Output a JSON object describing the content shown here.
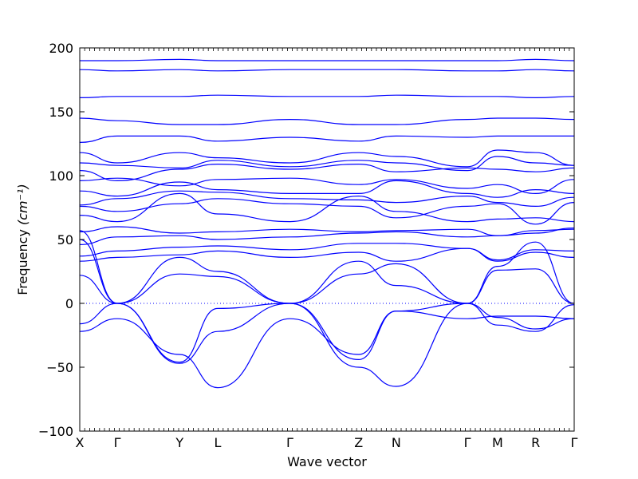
{
  "chart_data": {
    "type": "line",
    "xlabel": "Wave vector",
    "ylabel": "Frequency",
    "ylabel_unit": "(cm⁻¹)",
    "ylim": [
      -100,
      200
    ],
    "yticks": [
      -100,
      -50,
      0,
      50,
      100,
      150,
      200
    ],
    "x_points": [
      {
        "label": "X",
        "x": 0.0
      },
      {
        "label": "Γ",
        "x": 0.076
      },
      {
        "label": "Y",
        "x": 0.202
      },
      {
        "label": "L",
        "x": 0.279
      },
      {
        "label": "Γ",
        "x": 0.425
      },
      {
        "label": "Z",
        "x": 0.564
      },
      {
        "label": "N",
        "x": 0.64
      },
      {
        "label": "Γ",
        "x": 0.784
      },
      {
        "label": "M",
        "x": 0.845
      },
      {
        "label": "R",
        "x": 0.922
      },
      {
        "label": "Γ",
        "x": 1.0
      }
    ],
    "xlim": [
      0,
      1
    ],
    "zero_line": {
      "y": 0,
      "style": "dotted"
    },
    "line_color": "#0000ff",
    "series": [
      {
        "x": [
          0,
          0.076,
          0.202,
          0.279,
          0.425,
          0.564,
          0.64,
          0.784,
          0.845,
          0.922,
          1.0
        ],
        "values": [
          190,
          190,
          191,
          190,
          190,
          190,
          190,
          190,
          190,
          191,
          190
        ]
      },
      {
        "x": [
          0,
          0.076,
          0.202,
          0.279,
          0.425,
          0.564,
          0.64,
          0.784,
          0.845,
          0.922,
          1.0
        ],
        "values": [
          183,
          182,
          183,
          182,
          183,
          183,
          183,
          182,
          182,
          183,
          182
        ]
      },
      {
        "x": [
          0,
          0.076,
          0.202,
          0.279,
          0.425,
          0.564,
          0.64,
          0.784,
          0.845,
          0.922,
          1.0
        ],
        "values": [
          161,
          162,
          162,
          163,
          162,
          162,
          163,
          162,
          162,
          161,
          162
        ]
      },
      {
        "x": [
          0,
          0.076,
          0.202,
          0.279,
          0.425,
          0.564,
          0.64,
          0.784,
          0.845,
          0.922,
          1.0
        ],
        "values": [
          145,
          143,
          140,
          140,
          144,
          140,
          140,
          144,
          145,
          145,
          144
        ]
      },
      {
        "x": [
          0,
          0.076,
          0.202,
          0.279,
          0.425,
          0.564,
          0.64,
          0.784,
          0.845,
          0.922,
          1.0
        ],
        "values": [
          126,
          131,
          131,
          127,
          130,
          127,
          131,
          130,
          131,
          131,
          131
        ]
      },
      {
        "x": [
          0,
          0.076,
          0.202,
          0.279,
          0.425,
          0.564,
          0.64,
          0.784,
          0.845,
          0.922,
          1.0
        ],
        "values": [
          118,
          110,
          118,
          114,
          110,
          118,
          115,
          107,
          120,
          118,
          108
        ]
      },
      {
        "x": [
          0,
          0.076,
          0.202,
          0.279,
          0.425,
          0.564,
          0.64,
          0.784,
          0.845,
          0.922,
          1.0
        ],
        "values": [
          110,
          108,
          106,
          112,
          107,
          112,
          110,
          104,
          115,
          110,
          108
        ]
      },
      {
        "x": [
          0,
          0.076,
          0.202,
          0.279,
          0.425,
          0.564,
          0.64,
          0.784,
          0.845,
          0.922,
          1.0
        ],
        "values": [
          104,
          96,
          105,
          109,
          105,
          109,
          103,
          106,
          105,
          103,
          106
        ]
      },
      {
        "x": [
          0,
          0.076,
          0.202,
          0.279,
          0.425,
          0.564,
          0.64,
          0.784,
          0.845,
          0.922,
          1.0
        ],
        "values": [
          96,
          98,
          92,
          97,
          98,
          93,
          97,
          90,
          93,
          86,
          97
        ]
      },
      {
        "x": [
          0,
          0.076,
          0.202,
          0.279,
          0.425,
          0.564,
          0.64,
          0.784,
          0.845,
          0.922,
          1.0
        ],
        "values": [
          88,
          84,
          95,
          89,
          86,
          86,
          96,
          86,
          83,
          89,
          86
        ]
      },
      {
        "x": [
          0,
          0.076,
          0.202,
          0.279,
          0.425,
          0.564,
          0.64,
          0.784,
          0.845,
          0.922,
          1.0
        ],
        "values": [
          77,
          82,
          88,
          87,
          82,
          81,
          79,
          84,
          79,
          76,
          83
        ]
      },
      {
        "x": [
          0,
          0.076,
          0.202,
          0.279,
          0.425,
          0.564,
          0.64,
          0.784,
          0.845,
          0.922,
          1.0
        ],
        "values": [
          76,
          72,
          78,
          82,
          78,
          76,
          67,
          76,
          78,
          62,
          79
        ]
      },
      {
        "x": [
          0,
          0.076,
          0.202,
          0.279,
          0.425,
          0.564,
          0.64,
          0.784,
          0.845,
          0.922,
          1.0
        ],
        "values": [
          69,
          64,
          86,
          70,
          64,
          84,
          72,
          64,
          66,
          67,
          64
        ]
      },
      {
        "x": [
          0,
          0.076,
          0.202,
          0.279,
          0.425,
          0.564,
          0.64,
          0.784,
          0.845,
          0.922,
          1.0
        ],
        "values": [
          56,
          60,
          55,
          56,
          58,
          56,
          57,
          58,
          53,
          55,
          59
        ]
      },
      {
        "x": [
          0,
          0.076,
          0.202,
          0.279,
          0.425,
          0.564,
          0.64,
          0.784,
          0.845,
          0.922,
          1.0
        ],
        "values": [
          46,
          52,
          53,
          50,
          52,
          55,
          56,
          52,
          53,
          57,
          58
        ]
      },
      {
        "x": [
          0,
          0.076,
          0.202,
          0.279,
          0.425,
          0.564,
          0.64,
          0.784,
          0.845,
          0.922,
          1.0
        ],
        "values": [
          37,
          41,
          44,
          45,
          42,
          47,
          47,
          43,
          34,
          42,
          41
        ]
      },
      {
        "x": [
          0,
          0.076,
          0.202,
          0.279,
          0.425,
          0.564,
          0.64,
          0.784,
          0.845,
          0.922,
          1.0
        ],
        "values": [
          33,
          36,
          38,
          41,
          36,
          40,
          33,
          43,
          33,
          40,
          36
        ]
      },
      {
        "x": [
          0,
          0.076,
          0.202,
          0.279,
          0.425,
          0.564,
          0.64,
          0.784,
          0.845,
          0.922,
          1.0
        ],
        "values": [
          57,
          0,
          36,
          25,
          0,
          33,
          14,
          0,
          29,
          48,
          0
        ]
      },
      {
        "x": [
          0,
          0.076,
          0.202,
          0.279,
          0.425,
          0.564,
          0.64,
          0.784,
          0.845,
          0.922,
          1.0
        ],
        "values": [
          50,
          0,
          23,
          21,
          0,
          23,
          31,
          0,
          26,
          27,
          0
        ]
      },
      {
        "x": [
          0,
          0.076,
          0.202,
          0.279,
          0.425,
          0.564,
          0.64,
          0.784,
          0.845,
          0.922,
          1.0
        ],
        "values": [
          22,
          0,
          -46,
          -4,
          0,
          -44,
          -6,
          0,
          -17,
          -22,
          -1
        ]
      },
      {
        "x": [
          0,
          0.076,
          0.202,
          0.279,
          0.425,
          0.564,
          0.64,
          0.784,
          0.845,
          0.922,
          1.0
        ],
        "values": [
          -16,
          0,
          -47,
          -22,
          0,
          -50,
          -65,
          0,
          -11,
          -20,
          -12
        ]
      },
      {
        "x": [
          0,
          0.076,
          0.202,
          0.279,
          0.425,
          0.564,
          0.64,
          0.784,
          0.845,
          0.922,
          1.0
        ],
        "values": [
          -22,
          -12,
          -40,
          -66,
          -12,
          -40,
          -6,
          -12,
          -10,
          -10,
          -12
        ]
      }
    ]
  }
}
